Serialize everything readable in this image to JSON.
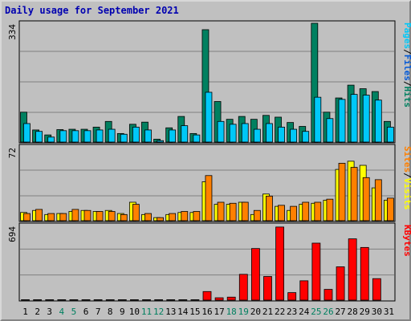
{
  "title": "Daily usage for September 2021",
  "chart_data": [
    {
      "type": "bar",
      "panel": "top",
      "ymax_label": "334",
      "ylim": [
        0,
        334
      ],
      "legend": [
        {
          "label": "Pages",
          "color": "#00c8f8"
        },
        {
          "label": "/",
          "color": "#000000"
        },
        {
          "label": "Files",
          "color": "#0058d8"
        },
        {
          "label": "/",
          "color": "#000000"
        },
        {
          "label": "Hits",
          "color": "#008060"
        }
      ],
      "series": [
        {
          "name": "Hits",
          "color": "#008060",
          "values": [
            84,
            34,
            20,
            35,
            36,
            36,
            42,
            58,
            24,
            50,
            56,
            8,
            40,
            72,
            24,
            316,
            114,
            64,
            72,
            64,
            75,
            70,
            55,
            44,
            334,
            84,
            124,
            160,
            150,
            142,
            58
          ]
        },
        {
          "name": "Pages",
          "color": "#00c8f8",
          "values": [
            52,
            30,
            14,
            32,
            32,
            32,
            34,
            36,
            22,
            42,
            34,
            4,
            34,
            46,
            20,
            140,
            58,
            50,
            52,
            36,
            52,
            42,
            36,
            30,
            126,
            66,
            120,
            134,
            132,
            118,
            42
          ]
        }
      ]
    },
    {
      "type": "bar",
      "panel": "middle",
      "ymax_label": "72",
      "ylim": [
        0,
        72
      ],
      "legend": [
        {
          "label": "Sites",
          "color": "#ff8000"
        },
        {
          "label": "/",
          "color": "#000000"
        },
        {
          "label": "Visits",
          "color": "#ffff00"
        }
      ],
      "series": [
        {
          "name": "Visits",
          "color": "#ffff00",
          "values": [
            8,
            10,
            6,
            7,
            9,
            10,
            9,
            10,
            7,
            18,
            6,
            3,
            6,
            8,
            8,
            38,
            16,
            16,
            18,
            6,
            26,
            14,
            10,
            16,
            17,
            20,
            50,
            58,
            54,
            32,
            20
          ]
        },
        {
          "name": "Sites",
          "color": "#ff8000",
          "values": [
            7,
            11,
            7,
            7,
            11,
            10,
            9,
            9,
            6,
            16,
            7,
            3,
            7,
            9,
            9,
            44,
            18,
            17,
            18,
            10,
            24,
            15,
            14,
            18,
            18,
            21,
            56,
            52,
            42,
            40,
            22
          ]
        }
      ]
    },
    {
      "type": "bar",
      "panel": "bottom",
      "ymax_label": "694",
      "ylim": [
        0,
        694
      ],
      "legend": [
        {
          "label": "KBytes",
          "color": "#ff0000"
        }
      ],
      "series": [
        {
          "name": "KBytes",
          "color": "#ff0000",
          "values": [
            4,
            4,
            4,
            4,
            4,
            4,
            4,
            4,
            4,
            4,
            4,
            4,
            4,
            4,
            4,
            80,
            22,
            28,
            240,
            480,
            220,
            680,
            70,
            180,
            530,
            100,
            310,
            570,
            490,
            200,
            0
          ]
        }
      ]
    }
  ],
  "x_axis": {
    "days": [
      "1",
      "2",
      "3",
      "4",
      "5",
      "6",
      "7",
      "8",
      "9",
      "10",
      "11",
      "12",
      "13",
      "14",
      "15",
      "16",
      "17",
      "18",
      "19",
      "20",
      "21",
      "22",
      "23",
      "24",
      "25",
      "26",
      "27",
      "28",
      "29",
      "30",
      "31"
    ],
    "weekend_days": [
      4,
      5,
      11,
      12,
      18,
      19,
      25,
      26
    ],
    "weekday_color": "#000000",
    "weekend_color": "#008060"
  }
}
